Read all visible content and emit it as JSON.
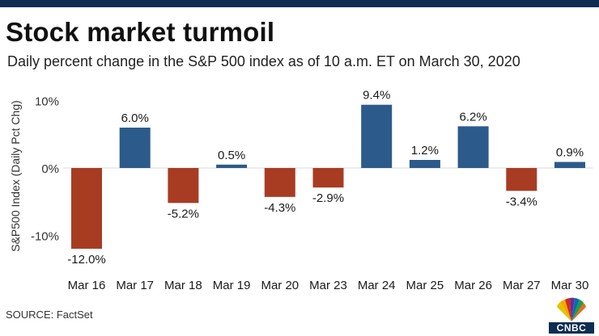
{
  "header": {
    "title": "Stock market turmoil",
    "subtitle": "Daily percent change in the S&P 500 index as of 10 a.m. ET on March 30, 2020"
  },
  "footer": {
    "source": "SOURCE: FactSet",
    "logo_text": "CNBC"
  },
  "colors": {
    "top_bar": "#0d2d52",
    "positive": "#2c5a8a",
    "negative": "#a83c23"
  },
  "chart_data": {
    "type": "bar",
    "title": "Stock market turmoil",
    "subtitle": "Daily percent change in the S&P 500 index as of 10 a.m. ET on March 30, 2020",
    "xlabel": "",
    "ylabel": "S&P500 Index (Daily Pct Chg)",
    "categories": [
      "Mar 16",
      "Mar 17",
      "Mar 18",
      "Mar 19",
      "Mar 20",
      "Mar 23",
      "Mar 24",
      "Mar 25",
      "Mar 26",
      "Mar 27",
      "Mar 30"
    ],
    "values": [
      -12.0,
      6.0,
      -5.2,
      0.5,
      -4.3,
      -2.9,
      9.4,
      1.2,
      6.2,
      -3.4,
      0.9
    ],
    "data_labels": [
      "-12.0%",
      "6.0%",
      "-5.2%",
      "0.5%",
      "-4.3%",
      "-2.9%",
      "9.4%",
      "1.2%",
      "6.2%",
      "-3.4%",
      "0.9%"
    ],
    "y_ticks": [
      10,
      0,
      -10
    ],
    "y_tick_labels": [
      "10%",
      "0%",
      "-10%"
    ],
    "ylim": [
      -12,
      10
    ],
    "grid": false,
    "legend": "none"
  }
}
